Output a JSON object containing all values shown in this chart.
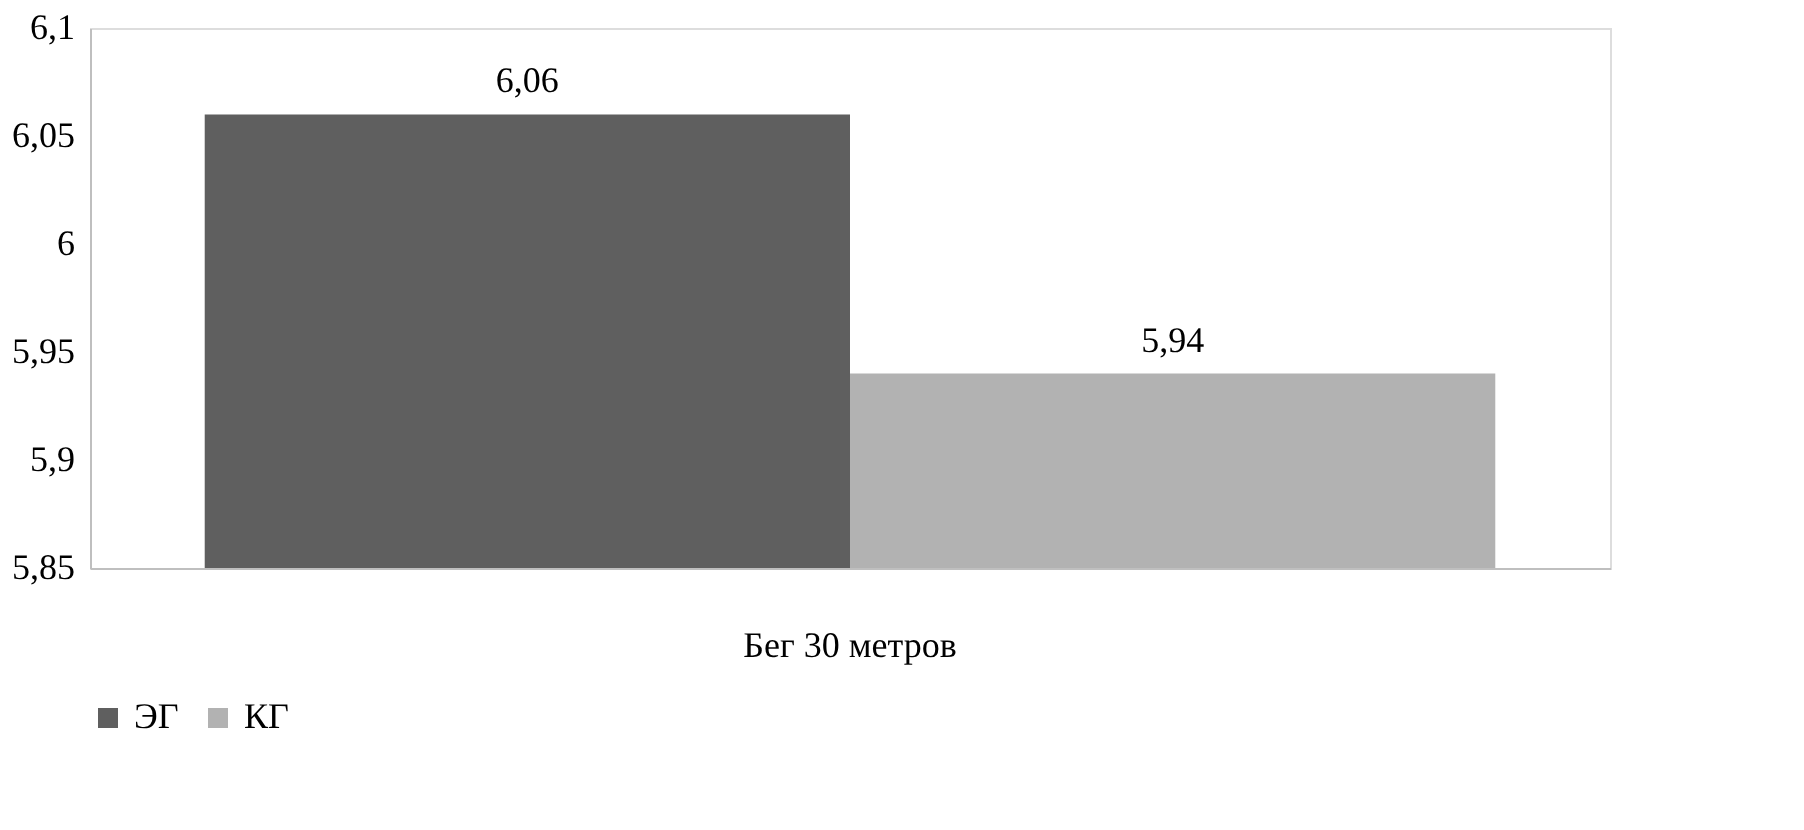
{
  "chart_data": {
    "type": "bar",
    "categories": [
      "Бег 30 метров"
    ],
    "series": [
      {
        "name": "ЭГ",
        "color": "#5f5f5f",
        "values": [
          6.06
        ],
        "value_labels": [
          "6,06"
        ]
      },
      {
        "name": "КГ",
        "color": "#b2b2b2",
        "values": [
          5.94
        ],
        "value_labels": [
          "5,94"
        ]
      }
    ],
    "ylim": [
      5.85,
      6.1
    ],
    "yticks": [
      {
        "value": 5.85,
        "label": "5,85"
      },
      {
        "value": 5.9,
        "label": "5,9"
      },
      {
        "value": 5.95,
        "label": "5,95"
      },
      {
        "value": 6,
        "label": "6"
      },
      {
        "value": 6.05,
        "label": "6,05"
      },
      {
        "value": 6.1,
        "label": "6,1"
      }
    ],
    "grid": false,
    "legend": "bottom"
  }
}
